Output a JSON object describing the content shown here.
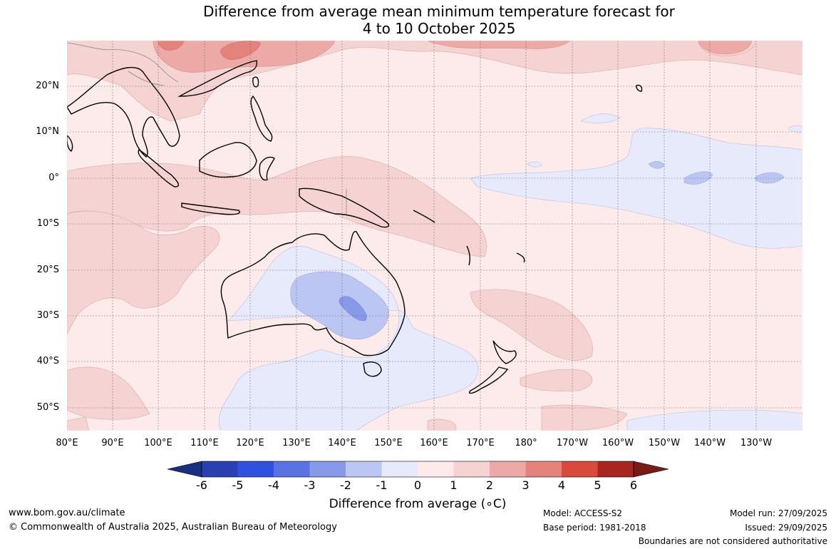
{
  "title": {
    "line1": "Difference from average mean minimum temperature forecast for",
    "line2": "4 to 10 October 2025"
  },
  "map": {
    "lat_labels": [
      "20°N",
      "10°N",
      "0°",
      "10°S",
      "20°S",
      "30°S",
      "40°S",
      "50°S"
    ],
    "lon_labels": [
      "80°E",
      "90°E",
      "100°E",
      "110°E",
      "120°E",
      "130°E",
      "140°E",
      "150°E",
      "160°E",
      "170°E",
      "180°",
      "170°W",
      "160°W",
      "150°W",
      "140°W",
      "130°W"
    ]
  },
  "colorbar": {
    "ticks": [
      "-6",
      "-5",
      "-4",
      "-3",
      "-2",
      "-1",
      "0",
      "1",
      "2",
      "3",
      "4",
      "5",
      "6"
    ],
    "colors": [
      "#1a2f80",
      "#2a3fb0",
      "#3050e0",
      "#5b72e3",
      "#8799e8",
      "#bcc6f2",
      "#e6eafb",
      "#fcebea",
      "#f5d3d2",
      "#eca9a5",
      "#e3837b",
      "#d9493c",
      "#a8261f",
      "#7a1a16"
    ],
    "title": "Difference from average (∘C)"
  },
  "footer": {
    "url": "www.bom.gov.au/climate",
    "copyright": "© Commonwealth of Australia 2025, Australian Bureau of Meteorology",
    "model": "Model: ACCESS-S2",
    "base_period": "Base period: 1981-2018",
    "model_run": "Model run: 27/09/2025",
    "issued": "Issued: 29/09/2025",
    "disclaimer": "Boundaries are not considered authoritative"
  }
}
